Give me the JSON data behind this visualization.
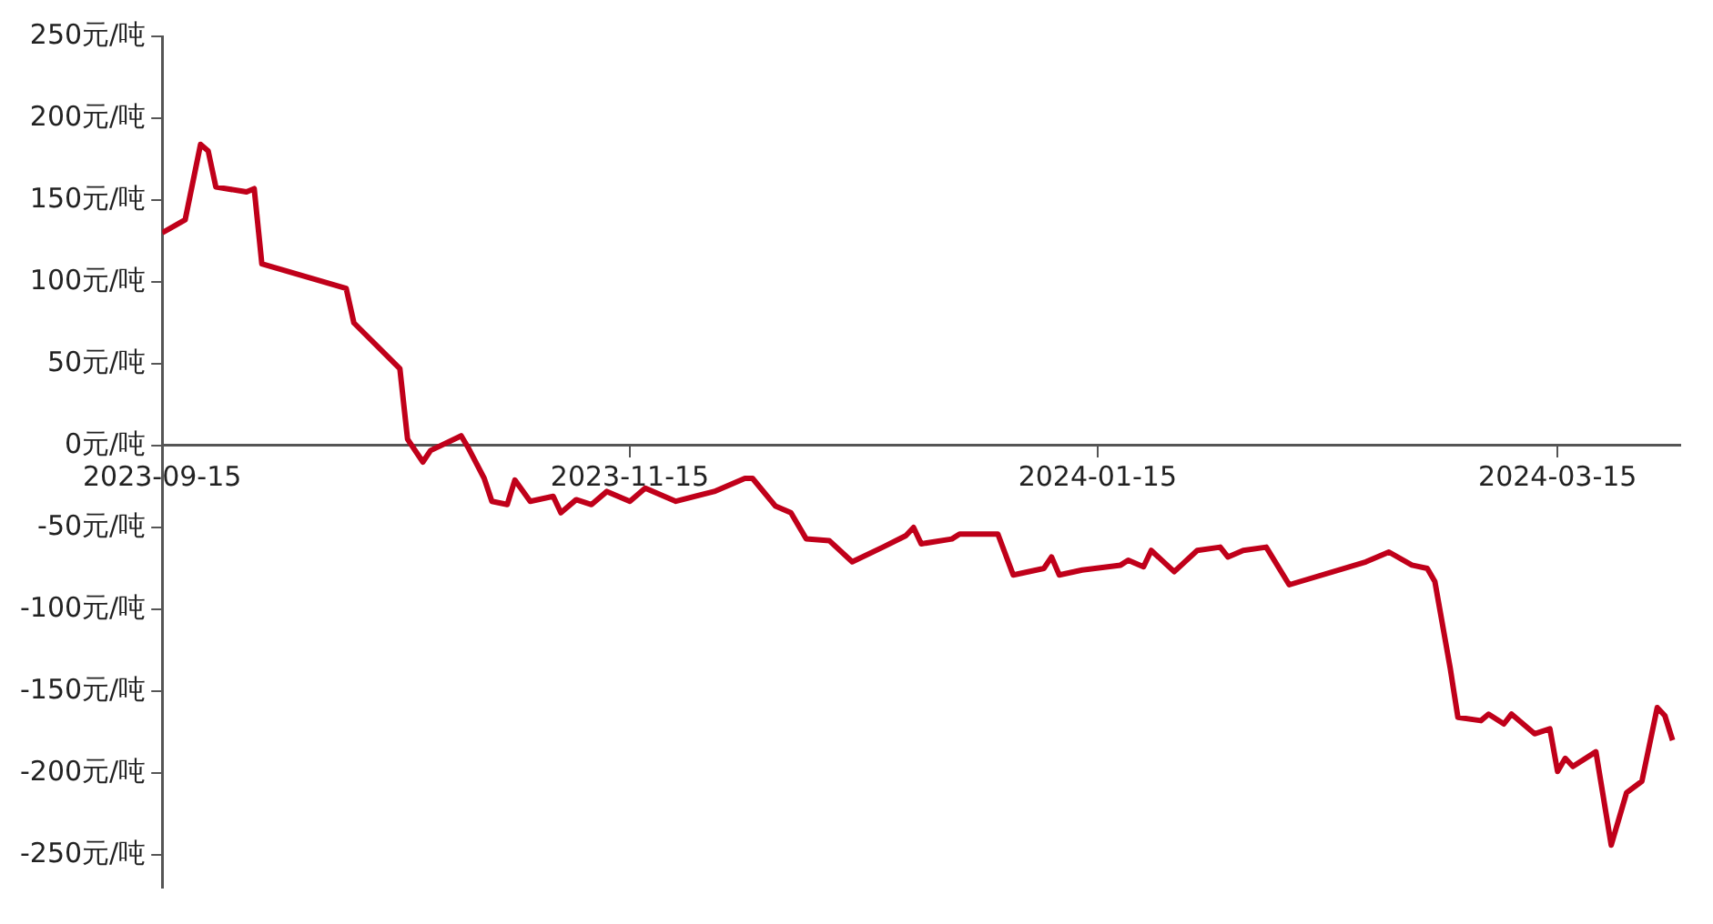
{
  "chart_data": {
    "type": "line",
    "x": [
      "2023-09-15",
      "2023-09-18",
      "2023-09-20",
      "2023-09-21",
      "2023-09-22",
      "2023-09-26",
      "2023-09-27",
      "2023-09-28",
      "2023-10-09",
      "2023-10-10",
      "2023-10-16",
      "2023-10-17",
      "2023-10-19",
      "2023-10-20",
      "2023-10-24",
      "2023-10-25",
      "2023-10-27",
      "2023-10-28",
      "2023-10-30",
      "2023-10-31",
      "2023-11-02",
      "2023-11-05",
      "2023-11-06",
      "2023-11-08",
      "2023-11-10",
      "2023-11-12",
      "2023-11-15",
      "2023-11-17",
      "2023-11-21",
      "2023-11-26",
      "2023-11-30",
      "2023-12-01",
      "2023-12-04",
      "2023-12-06",
      "2023-12-08",
      "2023-12-11",
      "2023-12-14",
      "2023-12-18",
      "2023-12-21",
      "2023-12-22",
      "2023-12-23",
      "2023-12-27",
      "2023-12-28",
      "2024-01-02",
      "2024-01-04",
      "2024-01-08",
      "2024-01-09",
      "2024-01-10",
      "2024-01-13",
      "2024-01-18",
      "2024-01-19",
      "2024-01-21",
      "2024-01-22",
      "2024-01-25",
      "2024-01-28",
      "2024-01-31",
      "2024-02-01",
      "2024-02-03",
      "2024-02-06",
      "2024-02-09",
      "2024-02-19",
      "2024-02-22",
      "2024-02-25",
      "2024-02-27",
      "2024-02-28",
      "2024-03-01",
      "2024-03-02",
      "2024-03-05",
      "2024-03-06",
      "2024-03-08",
      "2024-03-09",
      "2024-03-12",
      "2024-03-14",
      "2024-03-15",
      "2024-03-16",
      "2024-03-17",
      "2024-03-20",
      "2024-03-22",
      "2024-03-24",
      "2024-03-26",
      "2024-03-28",
      "2024-03-29",
      "2024-03-30"
    ],
    "series": [
      {
        "color": "#c0001a",
        "values": [
          130,
          138,
          184,
          180,
          158,
          155,
          157,
          111,
          96,
          75,
          47,
          4,
          -10,
          -3,
          6,
          -2,
          -20,
          -34,
          -36,
          -21,
          -34,
          -31,
          -41,
          -33,
          -36,
          -28,
          -34,
          -26,
          -34,
          -28,
          -20,
          -20,
          -37,
          -41,
          -57,
          -58,
          -71,
          -62,
          -55,
          -50,
          -60,
          -57,
          -54,
          -54,
          -79,
          -75,
          -68,
          -79,
          -76,
          -73,
          -70,
          -74,
          -64,
          -77,
          -64,
          -62,
          -68,
          -64,
          -62,
          -85,
          -71,
          -65,
          -73,
          -75,
          -83,
          -136,
          -166,
          -168,
          -164,
          -170,
          -164,
          -176,
          -173,
          -199,
          -191,
          -196,
          -187,
          -244,
          -212,
          -205,
          -160,
          -165,
          -180
        ]
      }
    ],
    "xlim": [
      "2023-09-15",
      "2024-03-31"
    ],
    "xticks": [
      "2023-09-15",
      "2023-11-15",
      "2024-01-15",
      "2024-03-15"
    ],
    "ylim": [
      -270,
      250
    ],
    "yticks": [
      {
        "value": 250,
        "label": "250元/吨"
      },
      {
        "value": 200,
        "label": "200元/吨"
      },
      {
        "value": 150,
        "label": "150元/吨"
      },
      {
        "value": 100,
        "label": "100元/吨"
      },
      {
        "value": 50,
        "label": "50元/吨"
      },
      {
        "value": 0,
        "label": "0元/吨"
      },
      {
        "value": -50,
        "label": "-50元/吨"
      },
      {
        "value": -100,
        "label": "-100元/吨"
      },
      {
        "value": -150,
        "label": "-150元/吨"
      },
      {
        "value": -200,
        "label": "-200元/吨"
      },
      {
        "value": -250,
        "label": "-250元/吨"
      }
    ],
    "grid": false,
    "legend": false,
    "marker": "none",
    "line_style": "solid"
  }
}
